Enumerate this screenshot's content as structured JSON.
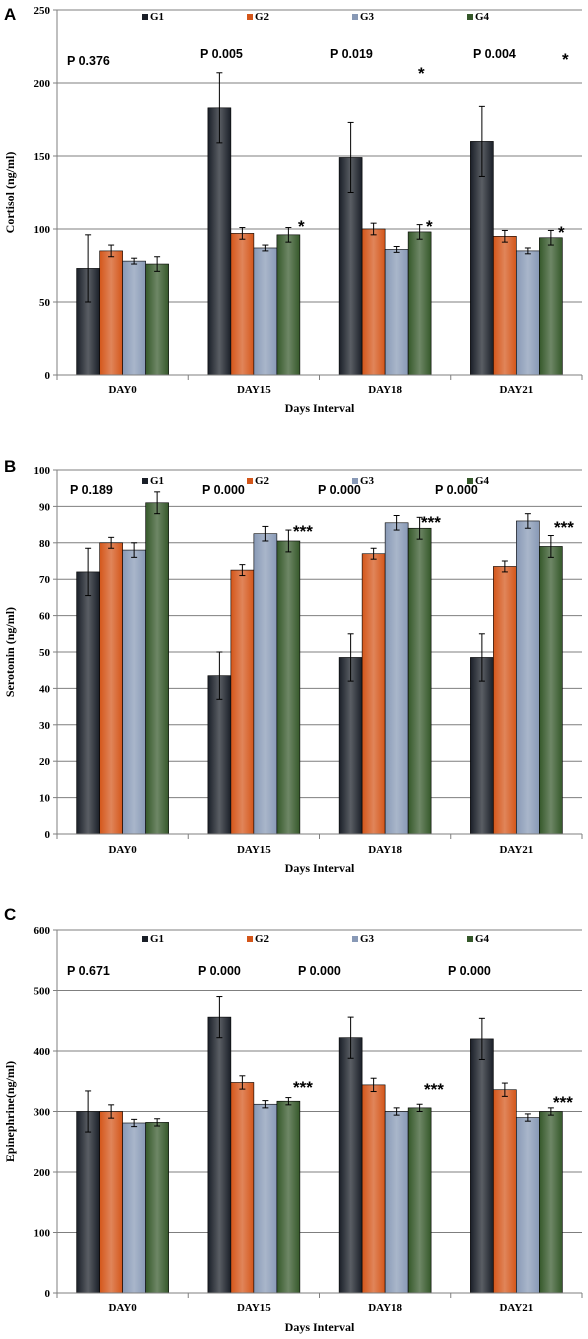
{
  "colors": {
    "G1": "#1a1f28",
    "G2": "#d4561a",
    "G3": "#8899b6",
    "G4": "#35582a"
  },
  "chart_data": [
    {
      "letter": "A",
      "type": "bar",
      "categories": [
        "DAY0",
        "DAY15",
        "DAY18",
        "DAY21"
      ],
      "series": [
        {
          "name": "G1",
          "values": [
            73,
            183,
            149,
            160
          ],
          "errors": [
            23,
            24,
            24,
            24
          ]
        },
        {
          "name": "G2",
          "values": [
            85,
            97,
            100,
            95
          ],
          "errors": [
            4,
            4,
            4,
            4
          ]
        },
        {
          "name": "G3",
          "values": [
            78,
            87,
            86,
            85
          ],
          "errors": [
            2,
            2,
            2,
            2
          ]
        },
        {
          "name": "G4",
          "values": [
            76,
            96,
            98,
            94
          ],
          "errors": [
            5,
            5,
            5,
            5
          ]
        }
      ],
      "ylim": [
        0,
        250
      ],
      "yticks": [
        0,
        50,
        100,
        150,
        200,
        250
      ],
      "ytick_labels": [
        "0",
        "50",
        "100",
        "150",
        "200",
        "250"
      ],
      "ylabel": "Cortisol (ng/ml)",
      "xlabel": "Days Interval",
      "grid": true,
      "legend_position": "top",
      "p_values": [
        "P 0.376",
        "P 0.005",
        "P 0.019",
        "P 0.004"
      ],
      "annotations": [
        "*",
        "*",
        "*",
        "*",
        "*"
      ]
    },
    {
      "letter": "B",
      "type": "bar",
      "categories": [
        "DAY0",
        "DAY15",
        "DAY18",
        "DAY21"
      ],
      "series": [
        {
          "name": "G1",
          "values": [
            72,
            43.5,
            48.5,
            48.5
          ],
          "errors": [
            6.5,
            6.5,
            6.5,
            6.5
          ]
        },
        {
          "name": "G2",
          "values": [
            80,
            72.5,
            77,
            73.5
          ],
          "errors": [
            1.5,
            1.5,
            1.5,
            1.5
          ]
        },
        {
          "name": "G3",
          "values": [
            78,
            82.5,
            85.5,
            86
          ],
          "errors": [
            2,
            2,
            2,
            2
          ]
        },
        {
          "name": "G4",
          "values": [
            91,
            80.5,
            84,
            79
          ],
          "errors": [
            3,
            3,
            3,
            3
          ]
        }
      ],
      "ylim": [
        0,
        100
      ],
      "yticks": [
        0,
        10,
        20,
        30,
        40,
        50,
        60,
        70,
        80,
        90,
        100
      ],
      "ytick_labels": [
        "0",
        "10",
        "20",
        "30",
        "40",
        "50",
        "60",
        "70",
        "80",
        "90",
        "100"
      ],
      "ylabel": "Serotonin (ng/ml)",
      "xlabel": "Days Interval",
      "grid": true,
      "legend_position": "top",
      "p_values": [
        "P 0.189",
        "P 0.000",
        "P 0.000",
        "P 0.000"
      ],
      "annotations": [
        "***",
        "***",
        "***"
      ]
    },
    {
      "letter": "C",
      "type": "bar",
      "categories": [
        "DAY0",
        "DAY15",
        "DAY18",
        "DAY21"
      ],
      "series": [
        {
          "name": "G1",
          "values": [
            300,
            456,
            422,
            420
          ],
          "errors": [
            34,
            34,
            34,
            34
          ]
        },
        {
          "name": "G2",
          "values": [
            300,
            348,
            344,
            336
          ],
          "errors": [
            11,
            11,
            11,
            11
          ]
        },
        {
          "name": "G3",
          "values": [
            281,
            312,
            300,
            290
          ],
          "errors": [
            6,
            6,
            6,
            6
          ]
        },
        {
          "name": "G4",
          "values": [
            282,
            317,
            306,
            300
          ],
          "errors": [
            6,
            6,
            6,
            6
          ]
        }
      ],
      "ylim": [
        0,
        600
      ],
      "yticks": [
        0,
        100,
        200,
        300,
        400,
        500,
        600
      ],
      "ytick_labels": [
        "0",
        "100",
        "200",
        "300",
        "400",
        "500",
        "600"
      ],
      "ylabel": "Epinephrine(ng/ml)",
      "xlabel": "Days Interval",
      "grid": true,
      "legend_position": "top",
      "p_values": [
        "P 0.671",
        "P 0.000",
        "P 0.000",
        "P 0.000"
      ],
      "annotations": [
        "***",
        "***",
        "***"
      ]
    }
  ]
}
